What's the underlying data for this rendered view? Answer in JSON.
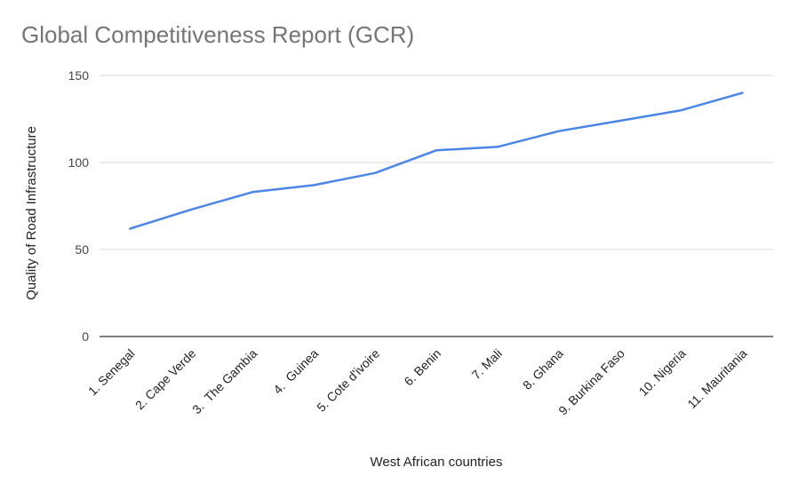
{
  "chart_data": {
    "type": "line",
    "title": "Global Competitiveness Report (GCR)",
    "xlabel": "West African countries",
    "ylabel": "Quality of Road Infrastructure",
    "categories": [
      "1. Senegal",
      "2. Cape Verde",
      "3.  The Gambia",
      "4.  Guinea",
      "5. Cote d'ivoire",
      "6. Benin",
      "7. Mali",
      "8. Ghana",
      "9. Burkina Faso",
      "10. Nigeria",
      "11. Mauritania"
    ],
    "values": [
      62,
      73,
      83,
      87,
      94,
      107,
      109,
      118,
      124,
      130,
      140
    ],
    "ylim": [
      0,
      150
    ],
    "yticks": [
      "0",
      "50",
      "100",
      "150"
    ],
    "grid": true,
    "legend": "none",
    "line_color": "#4a86e8"
  }
}
